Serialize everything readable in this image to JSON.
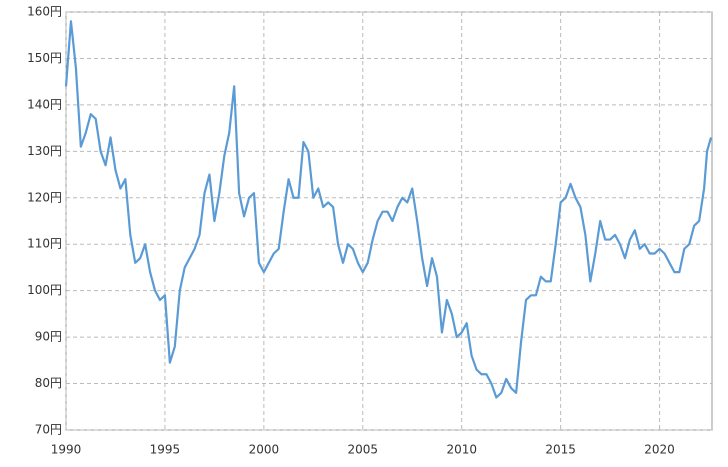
{
  "chart_data": {
    "type": "line",
    "x": [
      1990,
      1990.25,
      1990.5,
      1990.75,
      1991,
      1991.25,
      1991.5,
      1991.75,
      1992,
      1992.25,
      1992.5,
      1992.75,
      1993,
      1993.25,
      1993.5,
      1993.75,
      1994,
      1994.25,
      1994.5,
      1994.75,
      1995,
      1995.25,
      1995.5,
      1995.75,
      1996,
      1996.25,
      1996.5,
      1996.75,
      1997,
      1997.25,
      1997.5,
      1997.75,
      1998,
      1998.25,
      1998.5,
      1998.75,
      1999,
      1999.25,
      1999.5,
      1999.75,
      2000,
      2000.25,
      2000.5,
      2000.75,
      2001,
      2001.25,
      2001.5,
      2001.75,
      2002,
      2002.25,
      2002.5,
      2002.75,
      2003,
      2003.25,
      2003.5,
      2003.75,
      2004,
      2004.25,
      2004.5,
      2004.75,
      2005,
      2005.25,
      2005.5,
      2005.75,
      2006,
      2006.25,
      2006.5,
      2006.75,
      2007,
      2007.25,
      2007.5,
      2007.75,
      2008,
      2008.25,
      2008.5,
      2008.75,
      2009,
      2009.25,
      2009.5,
      2009.75,
      2010,
      2010.25,
      2010.5,
      2010.75,
      2011,
      2011.25,
      2011.5,
      2011.75,
      2012,
      2012.25,
      2012.5,
      2012.75,
      2013,
      2013.25,
      2013.5,
      2013.75,
      2014,
      2014.25,
      2014.5,
      2014.75,
      2015,
      2015.25,
      2015.5,
      2015.75,
      2016,
      2016.25,
      2016.5,
      2016.75,
      2017,
      2017.25,
      2017.5,
      2017.75,
      2018,
      2018.25,
      2018.5,
      2018.75,
      2019,
      2019.25,
      2019.5,
      2019.75,
      2020,
      2020.25,
      2020.5,
      2020.75,
      2021,
      2021.25,
      2021.5,
      2021.75,
      2022,
      2022.25,
      2022.4,
      2022.6
    ],
    "series": [
      {
        "color": "#5b9bd5",
        "values": [
          144,
          158,
          148,
          131,
          134,
          138,
          137,
          130,
          127,
          133,
          126,
          122,
          124,
          112,
          106,
          107,
          110,
          104,
          100,
          98,
          99,
          84.5,
          88,
          100,
          105,
          107,
          109,
          112,
          121,
          125,
          115,
          121,
          129,
          134,
          144,
          121,
          116,
          120,
          121,
          106,
          104,
          106,
          108,
          109,
          117,
          124,
          120,
          120,
          132,
          130,
          120,
          122,
          118,
          119,
          118,
          110,
          106,
          110,
          109,
          106,
          104,
          106,
          111,
          115,
          117,
          117,
          115,
          118,
          120,
          119,
          122,
          115,
          107,
          101,
          107,
          103,
          91,
          98,
          95,
          90,
          91,
          93,
          86,
          83,
          82,
          82,
          80,
          77,
          78,
          81,
          79,
          78,
          89,
          98,
          99,
          99,
          103,
          102,
          102,
          110,
          119,
          120,
          123,
          120,
          118,
          112,
          102,
          108,
          115,
          111,
          111,
          112,
          110,
          107,
          111,
          113,
          109,
          110,
          108,
          108,
          109,
          108,
          106,
          104,
          104,
          109,
          110,
          114,
          115,
          122,
          130,
          133
        ]
      }
    ],
    "xlim": [
      1990,
      2022.65
    ],
    "ylim": [
      70,
      160
    ],
    "xticks": [
      1990,
      1995,
      2000,
      2005,
      2010,
      2015,
      2020
    ],
    "yticks": [
      {
        "value": 70,
        "label": "70円"
      },
      {
        "value": 80,
        "label": "80円"
      },
      {
        "value": 90,
        "label": "90円"
      },
      {
        "value": 100,
        "label": "100円"
      },
      {
        "value": 110,
        "label": "110円"
      },
      {
        "value": 120,
        "label": "120円"
      },
      {
        "value": 130,
        "label": "130円"
      },
      {
        "value": 140,
        "label": "140円"
      },
      {
        "value": 150,
        "label": "150円"
      },
      {
        "value": 160,
        "label": "160円"
      }
    ],
    "grid": true
  }
}
